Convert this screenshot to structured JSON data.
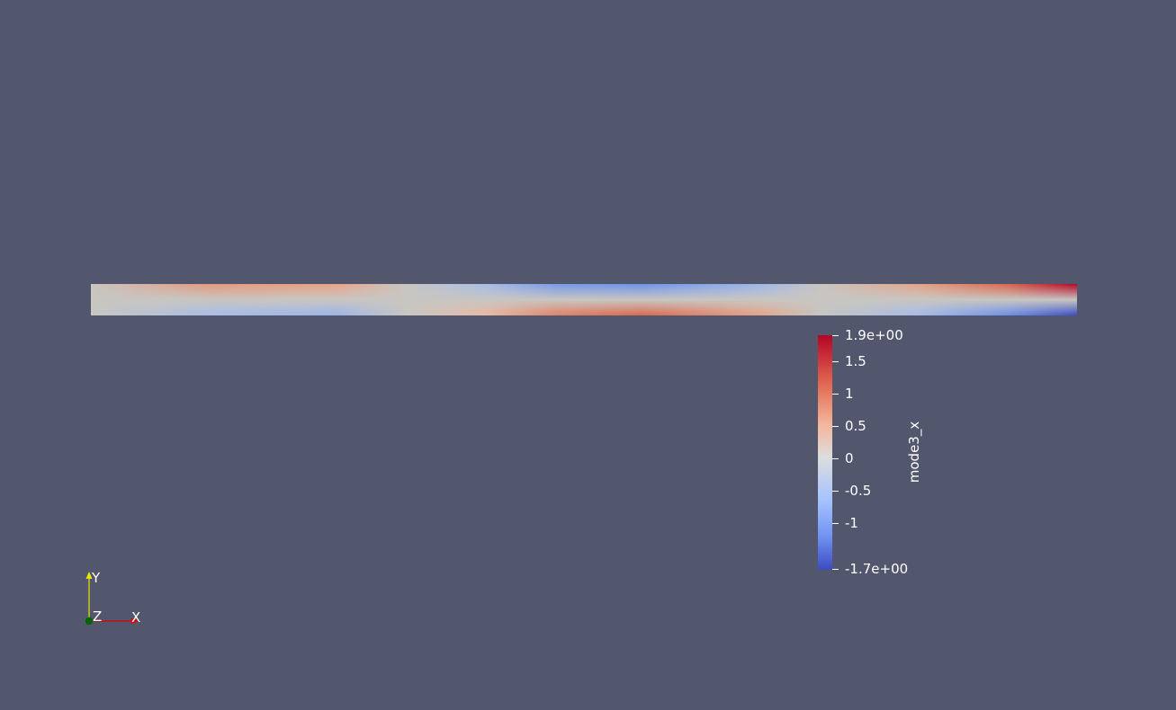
{
  "scalar_bar": {
    "title": "mode3_x",
    "max_label": "1.9e+00",
    "min_label": "-1.7e+00",
    "range": [
      -1.7,
      1.9
    ],
    "ticks": [
      {
        "value": 1.5,
        "label": "1.5"
      },
      {
        "value": 1,
        "label": "1"
      },
      {
        "value": 0.5,
        "label": "0.5"
      },
      {
        "value": 0,
        "label": "0"
      },
      {
        "value": -0.5,
        "label": "-0.5"
      },
      {
        "value": -1,
        "label": "-1"
      }
    ],
    "colors": {
      "max": "#b40426",
      "mid": "#dcdddd",
      "min": "#3b4cc0"
    }
  },
  "orientation_axes": {
    "x_label": "X",
    "y_label": "Y",
    "z_label": "Z",
    "colors": {
      "x": "#e00000",
      "y": "#e6e600",
      "z": "#006400"
    }
  },
  "background_color": "#52576e"
}
